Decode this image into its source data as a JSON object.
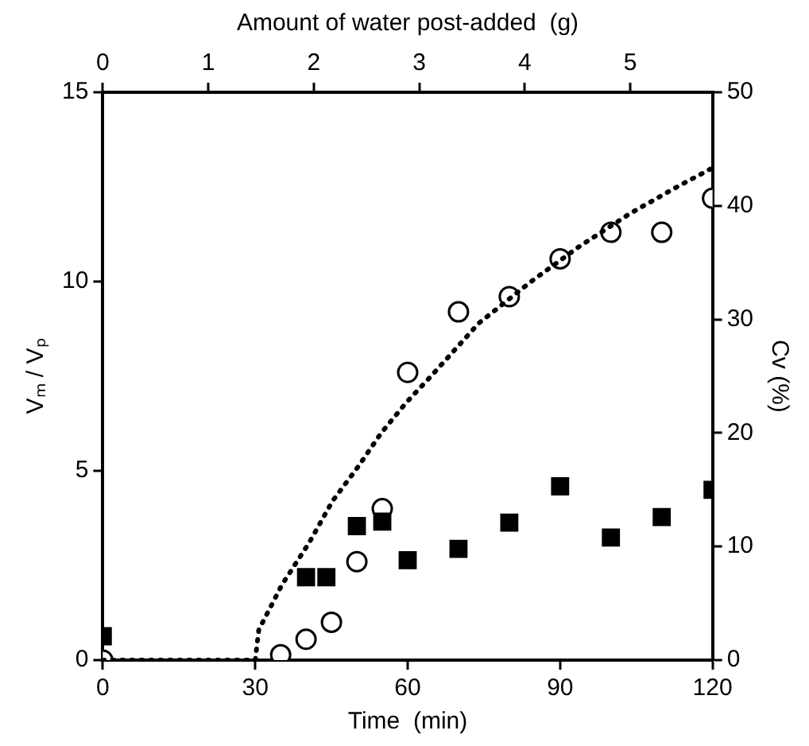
{
  "chart_data": {
    "type": "scatter",
    "xlabel": "Time  (min)",
    "ylabel": "Vₘ / Vₚ",
    "y2label": "Cv (%)",
    "x2label": "Amount of water post-added  (g)",
    "xlim": [
      0,
      120
    ],
    "xticks": [
      0,
      30,
      60,
      90,
      120
    ],
    "x2lim": [
      0,
      5.78
    ],
    "x2ticks": [
      0,
      1,
      2,
      3,
      4,
      5
    ],
    "ylim": [
      0,
      15
    ],
    "yticks": [
      0,
      5,
      10,
      15
    ],
    "y2lim": [
      0,
      50
    ],
    "y2ticks": [
      0,
      10,
      20,
      30,
      40,
      50
    ],
    "grid": false,
    "legend": false,
    "series": [
      {
        "type": "line",
        "color": "#000000",
        "marker": "none",
        "line_style": "dotted",
        "x": [
          0,
          30,
          30.7,
          35.3,
          40.6,
          45.2,
          50.2,
          54.8,
          59.7,
          64.6,
          74,
          84.3,
          93.5,
          103.8,
          113,
          120
        ],
        "values": [
          0,
          0,
          0.8,
          2.0,
          3.1,
          4.2,
          5.1,
          6.0,
          6.8,
          7.5,
          8.9,
          10.0,
          10.9,
          11.8,
          12.5,
          13.0
        ]
      },
      {
        "color": "#000000",
        "marker": "square",
        "axis": "y2",
        "x": [
          0,
          40,
          44,
          50,
          55,
          60,
          70,
          80,
          90,
          100,
          110,
          120
        ],
        "values": [
          2.1,
          7.3,
          7.3,
          11.8,
          12.2,
          8.8,
          9.8,
          12.1,
          15.3,
          10.8,
          12.6,
          15.0
        ]
      },
      {
        "color": "#000000",
        "marker": "circle",
        "x": [
          0,
          35,
          40,
          45,
          50,
          55,
          60,
          70,
          80,
          90,
          100,
          110,
          120
        ],
        "values": [
          0,
          0.14,
          0.55,
          1.0,
          2.6,
          4.0,
          7.6,
          9.2,
          9.6,
          10.6,
          11.3,
          11.3,
          12.2
        ]
      }
    ]
  }
}
